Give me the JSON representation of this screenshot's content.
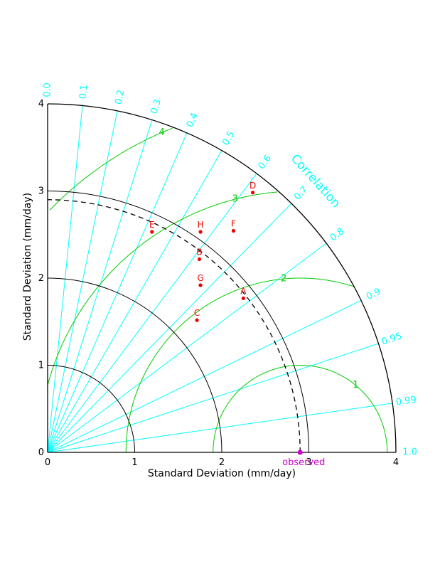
{
  "chart_data": {
    "type": "taylor_diagram",
    "title": "",
    "xlabel": "Standard Deviation (mm/day)",
    "ylabel": "Standard Deviation (mm/day)",
    "std_range": [
      0,
      4
    ],
    "std_ticks": [
      "0",
      "1",
      "2",
      "3",
      "4"
    ],
    "std_arcs": [
      1,
      2,
      3
    ],
    "correlation_label": "Correlation",
    "correlation_ticks": [
      {
        "value": 0.0,
        "label": "0.0"
      },
      {
        "value": 0.1,
        "label": "0.1"
      },
      {
        "value": 0.2,
        "label": "0.2"
      },
      {
        "value": 0.3,
        "label": "0.3"
      },
      {
        "value": 0.4,
        "label": "0.4"
      },
      {
        "value": 0.5,
        "label": "0.5"
      },
      {
        "value": 0.6,
        "label": "0.6"
      },
      {
        "value": 0.7,
        "label": "0.7"
      },
      {
        "value": 0.8,
        "label": "0.8"
      },
      {
        "value": 0.9,
        "label": "0.9"
      },
      {
        "value": 0.95,
        "label": "0.95"
      },
      {
        "value": 0.99,
        "label": "0.99"
      },
      {
        "value": 1.0,
        "label": "1.0"
      }
    ],
    "rmsd_arcs": [
      {
        "value": 1,
        "label": "1"
      },
      {
        "value": 2,
        "label": "2"
      },
      {
        "value": 3,
        "label": "3"
      },
      {
        "value": 4,
        "label": "4"
      }
    ],
    "reference": {
      "label": "observed",
      "std": 2.9
    },
    "points": [
      {
        "label": "A",
        "std": 2.86,
        "corr": 0.786
      },
      {
        "label": "B",
        "std": 2.82,
        "corr": 0.618
      },
      {
        "label": "C",
        "std": 2.29,
        "corr": 0.749
      },
      {
        "label": "D",
        "std": 3.8,
        "corr": 0.62
      },
      {
        "label": "E",
        "std": 2.8,
        "corr": 0.428
      },
      {
        "label": "F",
        "std": 3.32,
        "corr": 0.643
      },
      {
        "label": "G",
        "std": 2.6,
        "corr": 0.675
      },
      {
        "label": "H",
        "std": 3.08,
        "corr": 0.57
      }
    ],
    "colors": {
      "axis": "#000000",
      "correlation": "#00ffff",
      "rmsd": "#00cc00",
      "points": "#ee0000",
      "reference": "#cc00cc"
    }
  }
}
